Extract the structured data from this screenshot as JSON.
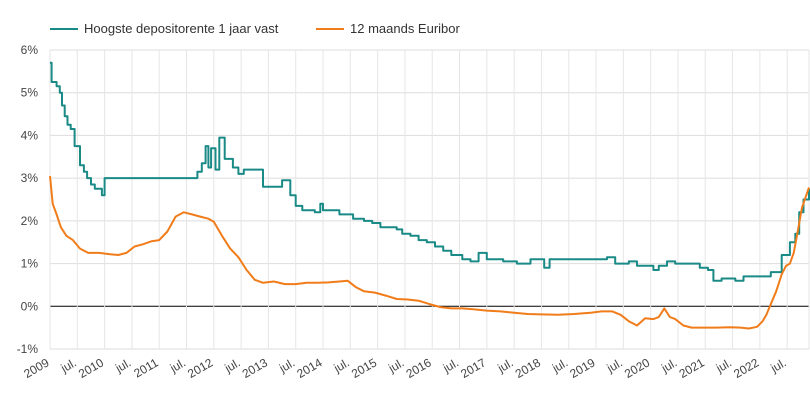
{
  "chart_data": {
    "type": "line",
    "legend_position": "top-left",
    "grid": true,
    "ylim": [
      -1,
      6
    ],
    "xlim": [
      2009.0,
      2022.9
    ],
    "y_ticks": [
      "-1%",
      "0%",
      "1%",
      "2%",
      "3%",
      "4%",
      "5%",
      "6%"
    ],
    "x_ticks": [
      {
        "x": 2009.0,
        "label": "2009"
      },
      {
        "x": 2009.5,
        "label": "jul."
      },
      {
        "x": 2010.0,
        "label": "2010"
      },
      {
        "x": 2010.5,
        "label": "jul."
      },
      {
        "x": 2011.0,
        "label": "2011"
      },
      {
        "x": 2011.5,
        "label": "jul."
      },
      {
        "x": 2012.0,
        "label": "2012"
      },
      {
        "x": 2012.5,
        "label": "jul."
      },
      {
        "x": 2013.0,
        "label": "2013"
      },
      {
        "x": 2013.5,
        "label": "jul."
      },
      {
        "x": 2014.0,
        "label": "2014"
      },
      {
        "x": 2014.5,
        "label": "jul."
      },
      {
        "x": 2015.0,
        "label": "2015"
      },
      {
        "x": 2015.5,
        "label": "jul."
      },
      {
        "x": 2016.0,
        "label": "2016"
      },
      {
        "x": 2016.5,
        "label": "jul."
      },
      {
        "x": 2017.0,
        "label": "2017"
      },
      {
        "x": 2017.5,
        "label": "jul."
      },
      {
        "x": 2018.0,
        "label": "2018"
      },
      {
        "x": 2018.5,
        "label": "jul."
      },
      {
        "x": 2019.0,
        "label": "2019"
      },
      {
        "x": 2019.5,
        "label": "jul."
      },
      {
        "x": 2020.0,
        "label": "2020"
      },
      {
        "x": 2020.5,
        "label": "jul."
      },
      {
        "x": 2021.0,
        "label": "2021"
      },
      {
        "x": 2021.5,
        "label": "jul."
      },
      {
        "x": 2022.0,
        "label": "2022"
      },
      {
        "x": 2022.5,
        "label": "jul."
      }
    ],
    "series": [
      {
        "name": "Hoogste depositorente 1 jaar vast",
        "color": "#1a8a86",
        "step": true,
        "points": [
          [
            2009.0,
            5.7
          ],
          [
            2009.03,
            5.25
          ],
          [
            2009.12,
            5.15
          ],
          [
            2009.18,
            5.0
          ],
          [
            2009.22,
            4.7
          ],
          [
            2009.27,
            4.45
          ],
          [
            2009.32,
            4.25
          ],
          [
            2009.38,
            4.15
          ],
          [
            2009.45,
            3.75
          ],
          [
            2009.55,
            3.3
          ],
          [
            2009.62,
            3.15
          ],
          [
            2009.68,
            3.0
          ],
          [
            2009.75,
            2.85
          ],
          [
            2009.82,
            2.75
          ],
          [
            2009.95,
            2.6
          ],
          [
            2010.0,
            3.0
          ],
          [
            2011.7,
            3.15
          ],
          [
            2011.78,
            3.35
          ],
          [
            2011.85,
            3.75
          ],
          [
            2011.9,
            3.25
          ],
          [
            2011.95,
            3.7
          ],
          [
            2012.03,
            3.2
          ],
          [
            2012.1,
            3.95
          ],
          [
            2012.2,
            3.45
          ],
          [
            2012.35,
            3.25
          ],
          [
            2012.45,
            3.1
          ],
          [
            2012.55,
            3.2
          ],
          [
            2012.9,
            2.8
          ],
          [
            2013.25,
            2.95
          ],
          [
            2013.4,
            2.6
          ],
          [
            2013.5,
            2.35
          ],
          [
            2013.62,
            2.25
          ],
          [
            2013.85,
            2.2
          ],
          [
            2013.95,
            2.4
          ],
          [
            2014.0,
            2.25
          ],
          [
            2014.3,
            2.15
          ],
          [
            2014.55,
            2.05
          ],
          [
            2014.75,
            2.0
          ],
          [
            2014.9,
            1.95
          ],
          [
            2015.05,
            1.85
          ],
          [
            2015.35,
            1.8
          ],
          [
            2015.45,
            1.7
          ],
          [
            2015.6,
            1.65
          ],
          [
            2015.75,
            1.55
          ],
          [
            2015.9,
            1.5
          ],
          [
            2016.05,
            1.4
          ],
          [
            2016.2,
            1.3
          ],
          [
            2016.35,
            1.2
          ],
          [
            2016.55,
            1.1
          ],
          [
            2016.7,
            1.05
          ],
          [
            2016.85,
            1.25
          ],
          [
            2017.0,
            1.1
          ],
          [
            2017.3,
            1.05
          ],
          [
            2017.55,
            1.0
          ],
          [
            2017.8,
            1.1
          ],
          [
            2018.05,
            0.9
          ],
          [
            2018.15,
            1.1
          ],
          [
            2018.5,
            1.1
          ],
          [
            2019.2,
            1.15
          ],
          [
            2019.35,
            1.0
          ],
          [
            2019.6,
            1.05
          ],
          [
            2019.75,
            0.95
          ],
          [
            2020.05,
            0.85
          ],
          [
            2020.15,
            0.95
          ],
          [
            2020.3,
            1.05
          ],
          [
            2020.45,
            1.0
          ],
          [
            2020.9,
            0.9
          ],
          [
            2021.05,
            0.85
          ],
          [
            2021.15,
            0.6
          ],
          [
            2021.3,
            0.65
          ],
          [
            2021.55,
            0.6
          ],
          [
            2021.7,
            0.7
          ],
          [
            2022.2,
            0.8
          ],
          [
            2022.4,
            1.2
          ],
          [
            2022.55,
            1.5
          ],
          [
            2022.65,
            1.7
          ],
          [
            2022.72,
            2.2
          ],
          [
            2022.8,
            2.5
          ],
          [
            2022.9,
            2.75
          ]
        ]
      },
      {
        "name": "12 maands Euribor",
        "color": "#f07c1a",
        "step": false,
        "points": [
          [
            2009.0,
            3.05
          ],
          [
            2009.05,
            2.4
          ],
          [
            2009.12,
            2.15
          ],
          [
            2009.2,
            1.85
          ],
          [
            2009.3,
            1.65
          ],
          [
            2009.42,
            1.55
          ],
          [
            2009.55,
            1.35
          ],
          [
            2009.7,
            1.25
          ],
          [
            2009.9,
            1.25
          ],
          [
            2010.1,
            1.22
          ],
          [
            2010.25,
            1.2
          ],
          [
            2010.4,
            1.25
          ],
          [
            2010.55,
            1.4
          ],
          [
            2010.7,
            1.45
          ],
          [
            2010.85,
            1.52
          ],
          [
            2011.0,
            1.55
          ],
          [
            2011.15,
            1.75
          ],
          [
            2011.3,
            2.1
          ],
          [
            2011.45,
            2.2
          ],
          [
            2011.6,
            2.15
          ],
          [
            2011.75,
            2.1
          ],
          [
            2011.9,
            2.05
          ],
          [
            2012.0,
            1.98
          ],
          [
            2012.15,
            1.65
          ],
          [
            2012.3,
            1.35
          ],
          [
            2012.45,
            1.15
          ],
          [
            2012.6,
            0.85
          ],
          [
            2012.75,
            0.62
          ],
          [
            2012.9,
            0.55
          ],
          [
            2013.1,
            0.58
          ],
          [
            2013.3,
            0.52
          ],
          [
            2013.5,
            0.52
          ],
          [
            2013.7,
            0.55
          ],
          [
            2013.9,
            0.55
          ],
          [
            2014.1,
            0.56
          ],
          [
            2014.3,
            0.58
          ],
          [
            2014.45,
            0.6
          ],
          [
            2014.6,
            0.45
          ],
          [
            2014.75,
            0.35
          ],
          [
            2014.95,
            0.32
          ],
          [
            2015.15,
            0.25
          ],
          [
            2015.35,
            0.17
          ],
          [
            2015.55,
            0.16
          ],
          [
            2015.75,
            0.13
          ],
          [
            2015.95,
            0.05
          ],
          [
            2016.15,
            -0.02
          ],
          [
            2016.35,
            -0.05
          ],
          [
            2016.55,
            -0.05
          ],
          [
            2016.75,
            -0.07
          ],
          [
            2017.0,
            -0.1
          ],
          [
            2017.25,
            -0.12
          ],
          [
            2017.5,
            -0.15
          ],
          [
            2017.75,
            -0.18
          ],
          [
            2018.0,
            -0.19
          ],
          [
            2018.3,
            -0.2
          ],
          [
            2018.6,
            -0.18
          ],
          [
            2018.9,
            -0.15
          ],
          [
            2019.1,
            -0.12
          ],
          [
            2019.3,
            -0.12
          ],
          [
            2019.45,
            -0.2
          ],
          [
            2019.6,
            -0.35
          ],
          [
            2019.75,
            -0.45
          ],
          [
            2019.9,
            -0.28
          ],
          [
            2020.05,
            -0.3
          ],
          [
            2020.15,
            -0.25
          ],
          [
            2020.25,
            -0.05
          ],
          [
            2020.35,
            -0.25
          ],
          [
            2020.45,
            -0.3
          ],
          [
            2020.6,
            -0.45
          ],
          [
            2020.75,
            -0.5
          ],
          [
            2020.95,
            -0.5
          ],
          [
            2021.2,
            -0.5
          ],
          [
            2021.45,
            -0.49
          ],
          [
            2021.65,
            -0.5
          ],
          [
            2021.8,
            -0.52
          ],
          [
            2021.95,
            -0.48
          ],
          [
            2022.05,
            -0.35
          ],
          [
            2022.12,
            -0.2
          ],
          [
            2022.2,
            0.05
          ],
          [
            2022.3,
            0.35
          ],
          [
            2022.4,
            0.75
          ],
          [
            2022.48,
            0.95
          ],
          [
            2022.55,
            1.0
          ],
          [
            2022.62,
            1.25
          ],
          [
            2022.7,
            1.8
          ],
          [
            2022.77,
            2.3
          ],
          [
            2022.85,
            2.6
          ],
          [
            2022.9,
            2.78
          ]
        ]
      }
    ]
  }
}
